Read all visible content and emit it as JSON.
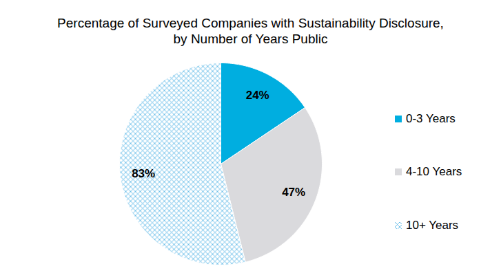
{
  "chart_data": {
    "type": "pie",
    "title": "Percentage of Surveyed Companies with Sustainability Disclosure,\nby Number of Years Public",
    "categories": [
      "0-3 Years",
      "4-10 Years",
      "10+ Years"
    ],
    "values": [
      24,
      47,
      83
    ],
    "value_labels": [
      "24%",
      "47%",
      "83%"
    ],
    "colors": [
      "#00aee0",
      "#dadadd",
      "#5bb8e6"
    ],
    "data_labels": true,
    "legend": "right"
  }
}
